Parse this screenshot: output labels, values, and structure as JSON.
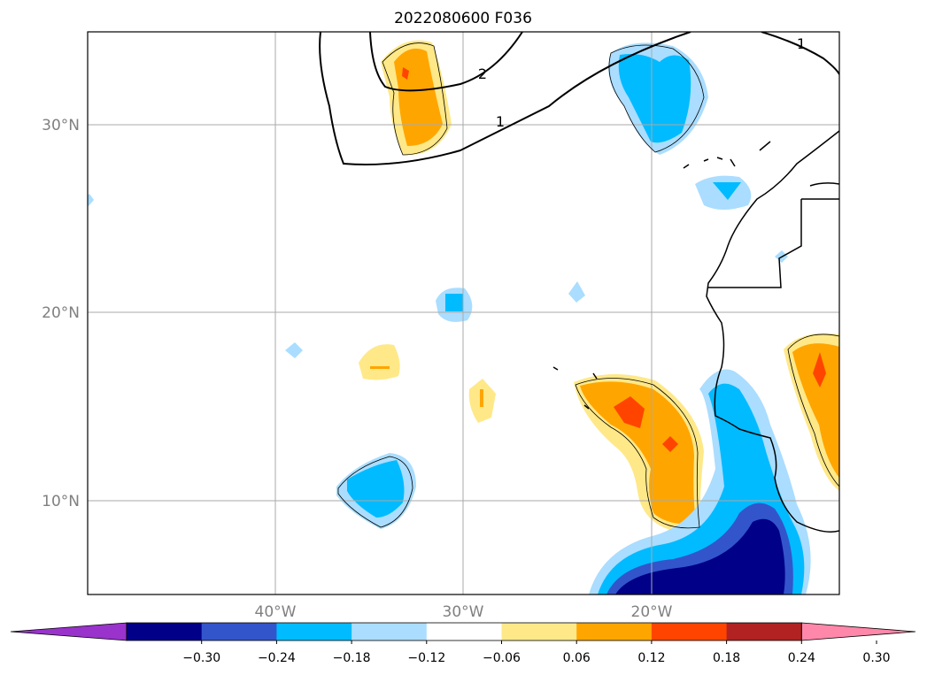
{
  "title": "2022080600 F036",
  "lat_labels": [
    "30°N",
    "20°N",
    "10°N"
  ],
  "lon_labels": [
    "40°W",
    "30°W",
    "20°W"
  ],
  "contour_labels": [
    "2",
    "1",
    "1"
  ],
  "colorbar": {
    "ticks": [
      "−0.30",
      "−0.24",
      "−0.18",
      "−0.12",
      "−0.06",
      "0.06",
      "0.12",
      "0.18",
      "0.24",
      "0.30"
    ],
    "colors": [
      "#9933cc",
      "#000088",
      "#3355cc",
      "#00bbff",
      "#aaddff",
      "#ffffff",
      "#ffe888",
      "#ffa500",
      "#ff4400",
      "#b22222",
      "#ff88aa"
    ]
  },
  "colors": {
    "land_outline": "#000000",
    "grid": "#aaaaaa",
    "label_gray": "#808080"
  }
}
